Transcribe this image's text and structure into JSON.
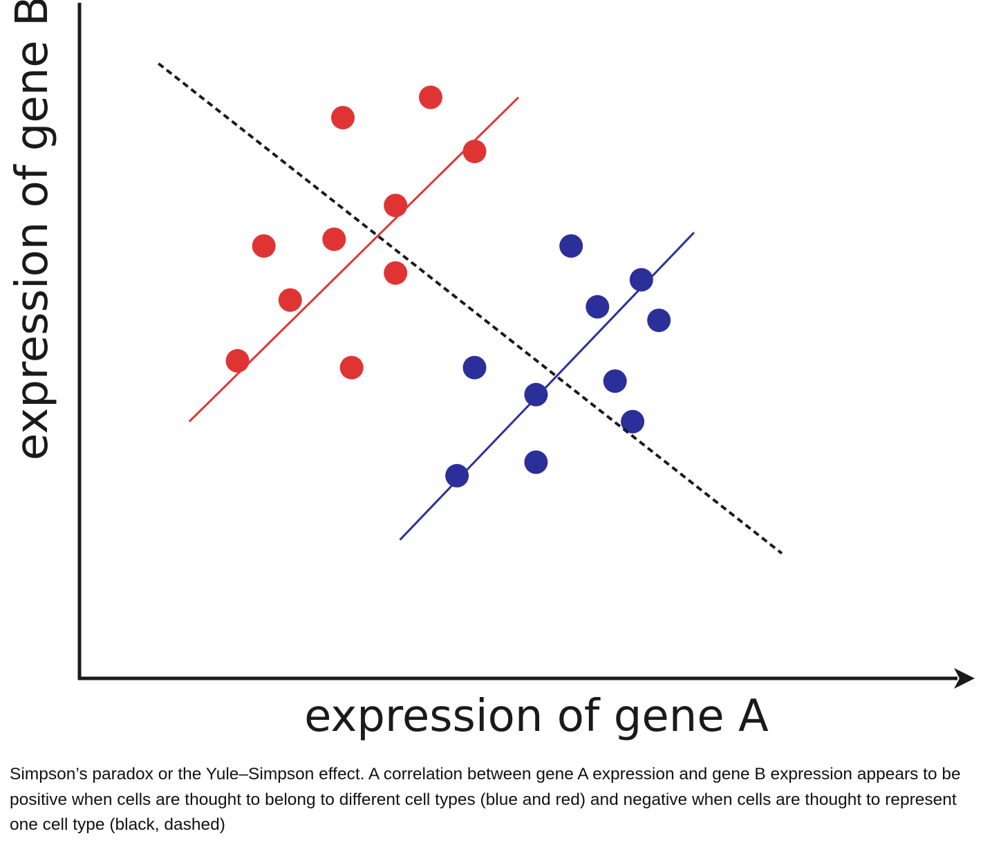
{
  "chart_data": {
    "type": "scatter",
    "xlabel": "expression of gene A",
    "ylabel": "expression of gene B",
    "xlim": [
      0,
      100
    ],
    "ylim": [
      0,
      100
    ],
    "grid": false,
    "legend": "none",
    "series": [
      {
        "color": "#e03434",
        "points": [
          [
            18,
            47
          ],
          [
            21,
            64
          ],
          [
            24,
            56
          ],
          [
            30,
            83
          ],
          [
            29,
            65
          ],
          [
            31,
            46
          ],
          [
            40,
            86
          ],
          [
            36,
            70
          ],
          [
            36,
            60
          ],
          [
            45,
            78
          ]
        ],
        "fit_line": [
          [
            12.5,
            38
          ],
          [
            50,
            86
          ]
        ]
      },
      {
        "color": "#2b2f9a",
        "points": [
          [
            43,
            30
          ],
          [
            45,
            46
          ],
          [
            52,
            32
          ],
          [
            52,
            42
          ],
          [
            56,
            64
          ],
          [
            59,
            55
          ],
          [
            61,
            44
          ],
          [
            63,
            38
          ],
          [
            64,
            59
          ],
          [
            66,
            53
          ]
        ],
        "fit_line": [
          [
            36.5,
            20.5
          ],
          [
            70,
            66
          ]
        ]
      }
    ],
    "overall_fit_line": {
      "color": "#1a1a1a",
      "style": "dashed",
      "points": [
        [
          9,
          91
        ],
        [
          80,
          18.5
        ]
      ]
    }
  },
  "caption": "Simpson’s paradox or the Yule–Simpson effect. A correlation between gene A expression and gene B expression appears to be positive when cells are thought to belong to different cell types (blue and red) and negative when cells are thought to represent one cell type (black, dashed)"
}
